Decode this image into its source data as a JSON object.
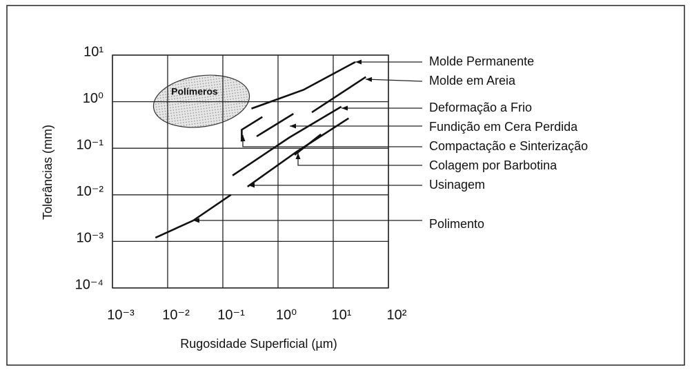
{
  "chart_data": {
    "type": "line",
    "xlabel": "Rugosidade Superficial (µm)",
    "ylabel": "Tolerâncias (mm)",
    "log_x": true,
    "log_y": true,
    "grid": true,
    "xlim": [
      0.001,
      100
    ],
    "ylim": [
      0.0001,
      10
    ],
    "xticks": [
      {
        "value": 0.001,
        "label": "10⁻³"
      },
      {
        "value": 0.01,
        "label": "10⁻²"
      },
      {
        "value": 0.1,
        "label": "10⁻¹"
      },
      {
        "value": 1,
        "label": "10⁰"
      },
      {
        "value": 10,
        "label": "10¹"
      },
      {
        "value": 100,
        "label": "10²"
      }
    ],
    "yticks": [
      {
        "value": 10,
        "label": "10¹"
      },
      {
        "value": 1,
        "label": "10⁰"
      },
      {
        "value": 0.1,
        "label": "10⁻¹"
      },
      {
        "value": 0.01,
        "label": "10⁻²"
      },
      {
        "value": 0.001,
        "label": "10⁻³"
      },
      {
        "value": 0.0001,
        "label": "10⁻⁴"
      }
    ],
    "region_label": "Polímeros",
    "series": [
      {
        "name": "Molde Permanente",
        "color": "#111111",
        "x": [
          0.33,
          2.9,
          25
        ],
        "values": [
          0.71,
          1.8,
          7.1
        ]
      },
      {
        "name": "Molde em Areia",
        "color": "#111111",
        "x": [
          4.1,
          39
        ],
        "values": [
          0.59,
          3.4
        ]
      },
      {
        "name": "Deformação a Frio",
        "color": "#111111",
        "x": [
          0.41,
          1.9
        ],
        "values": [
          0.18,
          0.55
        ]
      },
      {
        "name": "Fundição em Cera Perdida",
        "color": "#111111",
        "x": [
          0.22,
          0.22,
          0.52
        ],
        "values": [
          0.14,
          0.25,
          0.47
        ]
      },
      {
        "name": "Compactação e Sinterização",
        "color": "#111111",
        "x": [
          0.15,
          1.6,
          14
        ],
        "values": [
          0.026,
          0.17,
          0.78
        ]
      },
      {
        "name": "Colagem por Barbotina",
        "color": "#111111",
        "x": [
          2.0,
          6.0
        ],
        "values": [
          0.072,
          0.2
        ]
      },
      {
        "name": "Usinagem",
        "color": "#111111",
        "x": [
          0.28,
          2.2,
          19
        ],
        "values": [
          0.015,
          0.085,
          0.44
        ]
      },
      {
        "name": "Polimento",
        "color": "#111111",
        "x": [
          0.006,
          0.029,
          0.14
        ],
        "values": [
          0.0012,
          0.0028,
          0.01
        ]
      }
    ]
  }
}
